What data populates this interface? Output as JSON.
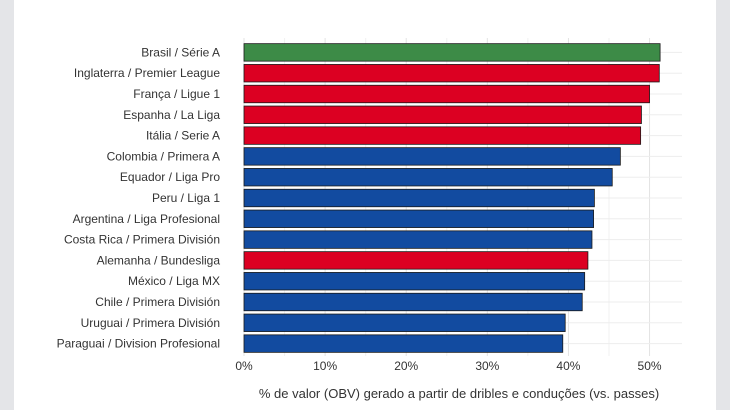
{
  "chart_data": {
    "type": "bar",
    "orientation": "horizontal",
    "categories": [
      "Brasil / Série A",
      "Inglaterra / Premier League",
      "França / Ligue 1",
      "Espanha / La Liga",
      "Itália / Serie A",
      "Colombia / Primera A",
      "Equador / Liga Pro",
      "Peru / Liga 1",
      "Argentina / Liga Profesional",
      "Costa Rica / Primera División",
      "Alemanha / Bundesliga",
      "México / Liga MX",
      "Chile / Primera División",
      "Uruguai / Primera División",
      "Paraguai / Division Profesional"
    ],
    "values": [
      51.3,
      51.2,
      50.0,
      49.0,
      48.9,
      46.4,
      45.4,
      43.2,
      43.1,
      42.9,
      42.4,
      42.0,
      41.7,
      39.6,
      39.3
    ],
    "bar_colors": [
      "#3d8b47",
      "#dc0022",
      "#dc0022",
      "#dc0022",
      "#dc0022",
      "#124ba0",
      "#124ba0",
      "#124ba0",
      "#124ba0",
      "#124ba0",
      "#dc0022",
      "#124ba0",
      "#124ba0",
      "#124ba0",
      "#124ba0"
    ],
    "xticks": [
      0,
      10,
      20,
      30,
      40,
      50
    ],
    "xtick_labels": [
      "0%",
      "10%",
      "20%",
      "30%",
      "40%",
      "50%"
    ],
    "xlim": [
      0,
      54
    ],
    "xlabel": "% de valor (OBV) gerado a partir de dribles e conduções (vs. passes)",
    "title": "",
    "grid": true,
    "bar_edge_color": "#1a1a1a"
  }
}
